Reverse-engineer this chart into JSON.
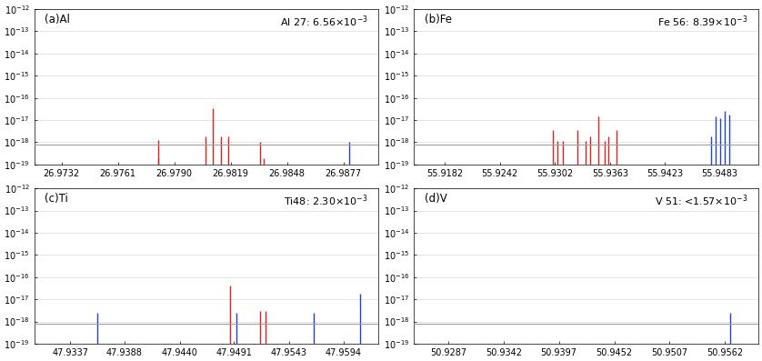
{
  "panels": [
    {
      "label": "(a)Al",
      "annotation_text": "Al 27: 6.56",
      "annotation_exp": "-3",
      "xlim": [
        26.9718,
        26.9895
      ],
      "xticks": [
        26.9732,
        26.9761,
        26.979,
        26.9819,
        26.9848,
        26.9877
      ],
      "xticklabels": [
        "26.9732",
        "26.9761",
        "26.9790",
        "26.9819",
        "26.9848",
        "26.9877"
      ],
      "red_lines": [
        [
          26.9782,
          1.3e-18
        ],
        [
          26.9782,
          2e-19
        ],
        [
          26.9806,
          1.8e-18
        ],
        [
          26.981,
          3.5e-17
        ],
        [
          26.9814,
          1.8e-18
        ],
        [
          26.9818,
          1.8e-18
        ],
        [
          26.9834,
          1e-18
        ],
        [
          26.9836,
          2e-19
        ]
      ],
      "blue_lines": [
        [
          26.988,
          1e-18
        ]
      ],
      "hline_y": 8e-19
    },
    {
      "label": "(b)Fe",
      "annotation_text": "Fe 56: 8.39",
      "annotation_exp": "-3",
      "xlim": [
        55.9148,
        55.9525
      ],
      "xticks": [
        55.9182,
        55.9242,
        55.9302,
        55.9363,
        55.9423,
        55.9483
      ],
      "xticklabels": [
        "55.9182",
        "55.9242",
        "55.9302",
        "55.9363",
        "55.9423",
        "55.9483"
      ],
      "red_lines": [
        [
          55.9245,
          1e-19
        ],
        [
          55.93,
          3.5e-18
        ],
        [
          55.9305,
          1.2e-18
        ],
        [
          55.9311,
          1.1e-18
        ],
        [
          55.932,
          1e-19
        ],
        [
          55.9327,
          3.5e-18
        ],
        [
          55.9336,
          1.2e-18
        ],
        [
          55.9341,
          1.8e-18
        ],
        [
          55.935,
          1.5e-17
        ],
        [
          55.9357,
          1.1e-18
        ],
        [
          55.9361,
          1.8e-18
        ],
        [
          55.937,
          3.5e-18
        ],
        [
          55.9393,
          1e-19
        ],
        [
          55.942,
          1e-19
        ]
      ],
      "blue_lines": [
        [
          55.9473,
          1.8e-18
        ],
        [
          55.9478,
          1.5e-17
        ],
        [
          55.9483,
          1.2e-17
        ],
        [
          55.9488,
          2.5e-17
        ],
        [
          55.9493,
          1.8e-17
        ]
      ],
      "hline_y": 8e-19
    },
    {
      "label": "(c)Ti",
      "annotation_text": "Ti48: 2.30",
      "annotation_exp": "-3",
      "xlim": [
        47.9303,
        47.9627
      ],
      "xticks": [
        47.9337,
        47.9388,
        47.944,
        47.9491,
        47.9543,
        47.9594
      ],
      "xticklabels": [
        "47.9337",
        "47.9388",
        "47.9440",
        "47.9491",
        "47.9543",
        "47.9594"
      ],
      "red_lines": [
        [
          47.9415,
          1e-19
        ],
        [
          47.9487,
          4e-17
        ],
        [
          47.9488,
          1e-19
        ],
        [
          47.9516,
          3e-18
        ],
        [
          47.9521,
          3e-18
        ],
        [
          47.9558,
          1e-19
        ]
      ],
      "blue_lines": [
        [
          47.9362,
          2.5e-18
        ],
        [
          47.9493,
          2.5e-18
        ],
        [
          47.9566,
          2.5e-18
        ],
        [
          47.961,
          1.8e-17
        ]
      ],
      "hline_y": 8e-19
    },
    {
      "label": "(d)V",
      "annotation_text": "V 51: <1.57",
      "annotation_exp": "-3",
      "xlim": [
        50.9253,
        50.9595
      ],
      "xticks": [
        50.9287,
        50.9342,
        50.9397,
        50.9452,
        50.9507,
        50.9562
      ],
      "xticklabels": [
        "50.9287",
        "50.9342",
        "50.9397",
        "50.9452",
        "50.9507",
        "50.9562"
      ],
      "red_lines": [
        [
          50.9347,
          1e-19
        ],
        [
          50.9402,
          1e-19
        ],
        [
          50.9457,
          1e-19
        ],
        [
          50.9462,
          1e-19
        ]
      ],
      "blue_lines": [
        [
          50.9567,
          2.5e-18
        ]
      ],
      "hline_y": 8e-19
    }
  ],
  "ylim": [
    1e-19,
    1e-12
  ],
  "yticks": [
    1e-19,
    1e-18,
    1e-17,
    1e-16,
    1e-15,
    1e-14,
    1e-13,
    1e-12
  ],
  "red_color": "#dd2222",
  "blue_color": "#2244cc",
  "hline_color": "#999999",
  "bg_color": "#ffffff",
  "font_size_tick": 7.0,
  "font_size_label": 8.5,
  "font_size_annotation": 8.0
}
